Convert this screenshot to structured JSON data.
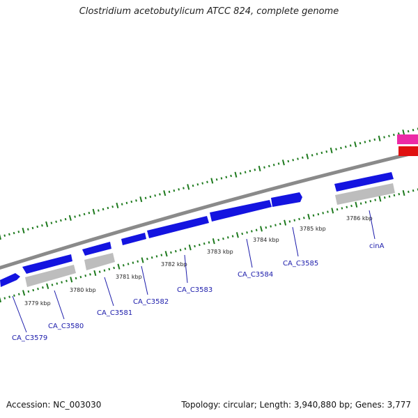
{
  "title": "Clostridium acetobutylicum ATCC 824, complete genome",
  "footer": {
    "accession": "Accession: NC_003030",
    "summary": "Topology: circular; Length: 3,940,880 bp; Genes: 3,777"
  },
  "colors": {
    "backbone": "#8a8a8a",
    "cds": "#1414e0",
    "gray_feature": "#bdbdbd",
    "tick": "#1e7a1e",
    "gene_label": "#1a1aaa",
    "pink_feature": "#ec2aa6",
    "red_feature": "#e01010"
  },
  "scale_labels": [
    "3779 kbp",
    "3780 kbp",
    "3781 kbp",
    "3782 kbp",
    "3783 kbp",
    "3784 kbp",
    "3785 kbp",
    "3786 kbp"
  ],
  "gene_labels": [
    "CA_C3579",
    "CA_C3580",
    "CA_C3581",
    "CA_C3582",
    "CA_C3583",
    "CA_C3584",
    "CA_C3585",
    "cinA"
  ]
}
